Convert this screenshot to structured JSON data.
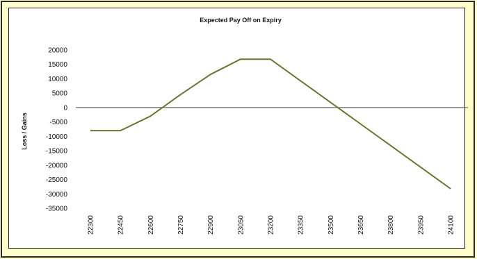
{
  "chart_data": {
    "type": "line",
    "title": "Expected  Pay Off on Expiry",
    "xlabel": "",
    "ylabel": "Loss / Gains",
    "x": [
      22300,
      22450,
      22600,
      22750,
      22900,
      23050,
      23200,
      23350,
      23500,
      23650,
      23800,
      23950,
      24100
    ],
    "x_tick_labels": [
      "22300",
      "22450",
      "22600",
      "22750",
      "22900",
      "23050",
      "23200",
      "23350",
      "23500",
      "23650",
      "23800",
      "23950",
      "24100"
    ],
    "y_tick_labels": [
      "20000",
      "15000",
      "10000",
      "5000",
      "0",
      "-5000",
      "-10000",
      "-15000",
      "-20000",
      "-25000",
      "-30000",
      "-35000"
    ],
    "ylim": [
      -35000,
      20000
    ],
    "series": [
      {
        "values": [
          -8000,
          -8000,
          -3000,
          4500,
          11500,
          16800,
          16800,
          9300,
          1800,
          -5700,
          -13200,
          -20700,
          -28200
        ]
      }
    ],
    "zero_line": true,
    "grid": false,
    "legend": "none",
    "colors": {
      "line": "#6B7430",
      "zero_line": "#4A4A4A",
      "panel": "#FFFFFF",
      "frame_background": "#FFFFCC"
    }
  }
}
